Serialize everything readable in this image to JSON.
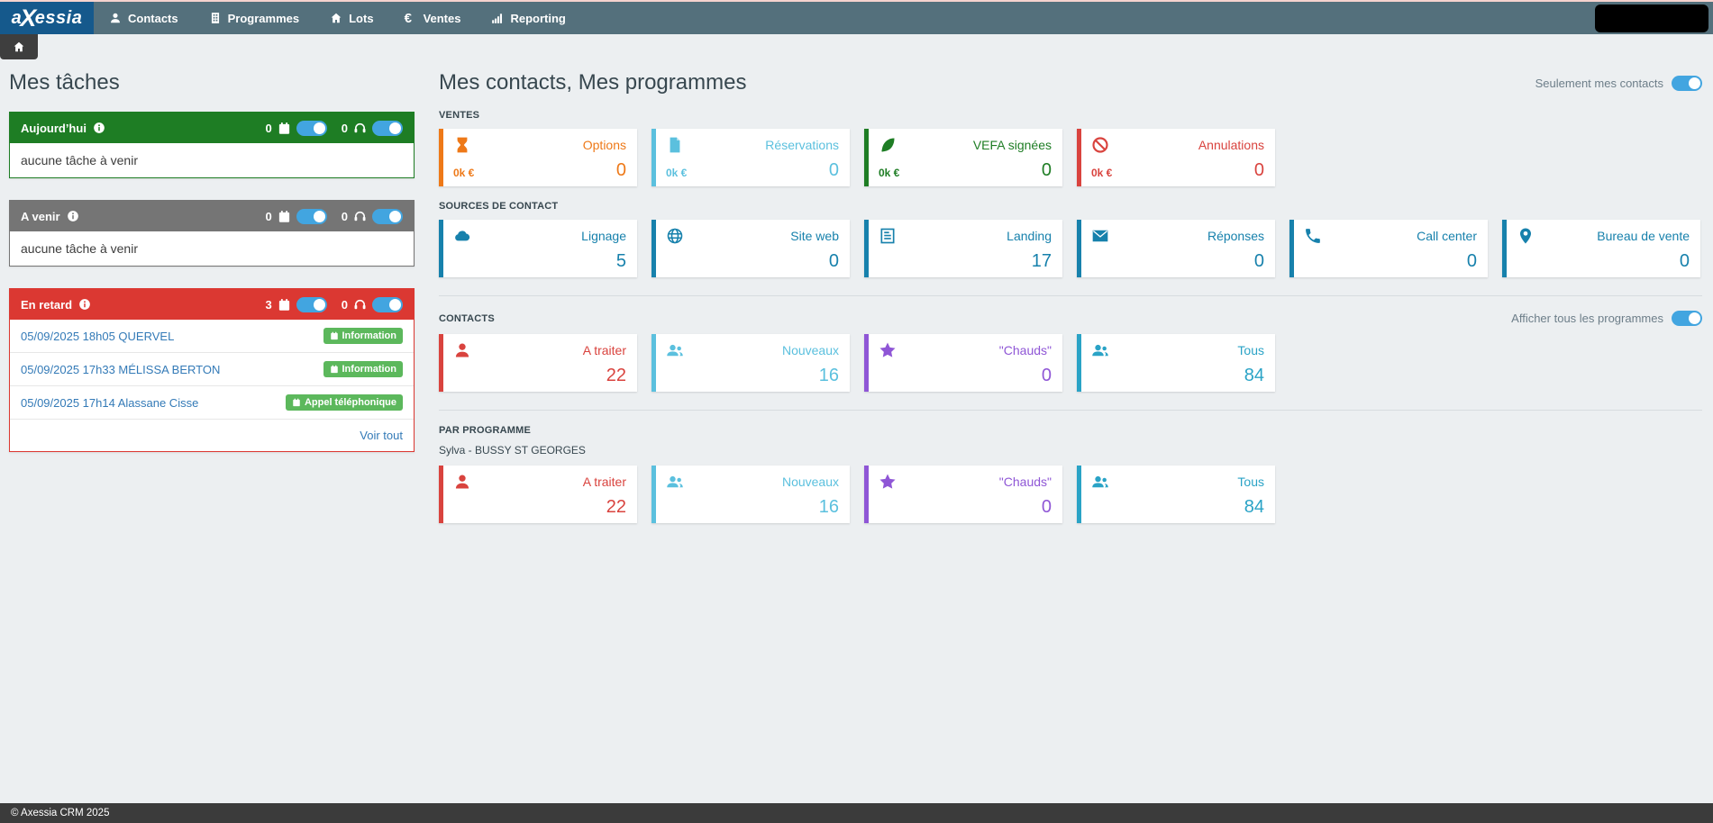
{
  "navbar": {
    "logo_text": "axessia",
    "items": [
      {
        "label": "Contacts",
        "icon": "user"
      },
      {
        "label": "Programmes",
        "icon": "building"
      },
      {
        "label": "Lots",
        "icon": "home"
      },
      {
        "label": "Ventes",
        "icon": "euro"
      },
      {
        "label": "Reporting",
        "icon": "chart"
      }
    ]
  },
  "breadcrumb": {
    "icon": "home"
  },
  "tasks": {
    "title": "Mes tâches",
    "icons": {
      "calendar": "calendar",
      "headset": "headset",
      "info": "info"
    },
    "badge_icon": "calendar",
    "groups": [
      {
        "label": "Aujourd’hui",
        "color": "#1e7d24",
        "calendar_count": "0",
        "call_count": "0",
        "empty_text": "aucune tâche à venir"
      },
      {
        "label": "A venir",
        "color": "#757575",
        "calendar_count": "0",
        "call_count": "0",
        "empty_text": "aucune tâche à venir"
      },
      {
        "label": "En retard",
        "color": "#db3832",
        "calendar_count": "3",
        "call_count": "0",
        "items": [
          {
            "text": "05/09/2025 18h05 QUERVEL",
            "badge": "Information"
          },
          {
            "text": "05/09/2025 17h33 MÉLISSA BERTON",
            "badge": "Information"
          },
          {
            "text": "05/09/2025 17h14 Alassane Cisse",
            "badge": "Appel téléphonique"
          }
        ],
        "view_all_label": "Voir tout"
      }
    ]
  },
  "main": {
    "title": "Mes contacts, Mes programmes",
    "my_contacts_toggle_label": "Seulement mes contacts",
    "all_programs_toggle_label": "Afficher tous les programmes",
    "ventes": {
      "label": "VENTES",
      "cards": [
        {
          "icon": "hourglass",
          "label": "Options",
          "money": "0k €",
          "value": "0",
          "color": "#ee7918"
        },
        {
          "icon": "contract",
          "label": "Réservations",
          "money": "0k €",
          "value": "0",
          "color": "#5bc0de"
        },
        {
          "icon": "feather",
          "label": "VEFA signées",
          "money": "0k €",
          "value": "0",
          "color": "#1e7d24"
        },
        {
          "icon": "ban",
          "label": "Annulations",
          "money": "0k €",
          "value": "0",
          "color": "#d9433e"
        }
      ]
    },
    "sources": {
      "label": "SOURCES DE CONTACT",
      "cards": [
        {
          "icon": "cloud",
          "label": "Lignage",
          "value": "5",
          "color": "#1781ac"
        },
        {
          "icon": "globe",
          "label": "Site web",
          "value": "0",
          "color": "#1781ac"
        },
        {
          "icon": "form",
          "label": "Landing",
          "value": "17",
          "color": "#1781ac"
        },
        {
          "icon": "envelope",
          "label": "Réponses",
          "value": "0",
          "color": "#1781ac"
        },
        {
          "icon": "phone",
          "label": "Call center",
          "value": "0",
          "color": "#1781ac"
        },
        {
          "icon": "marker",
          "label": "Bureau de vente",
          "value": "0",
          "color": "#1781ac"
        }
      ]
    },
    "contacts": {
      "label": "CONTACTS",
      "cards": [
        {
          "icon": "user",
          "label": "A traiter",
          "value": "22",
          "color": "#d9433e"
        },
        {
          "icon": "users",
          "label": "Nouveaux",
          "value": "16",
          "color": "#5bc0de"
        },
        {
          "icon": "star",
          "label": "\"Chauds\"",
          "value": "0",
          "color": "#8f56d6"
        },
        {
          "icon": "users",
          "label": "Tous",
          "value": "84",
          "color": "#2aa3c6"
        }
      ]
    },
    "par_programme": {
      "label": "PAR PROGRAMME",
      "program_name": "Sylva - BUSSY ST GEORGES",
      "cards": [
        {
          "icon": "user",
          "label": "A traiter",
          "value": "22",
          "color": "#d9433e"
        },
        {
          "icon": "users",
          "label": "Nouveaux",
          "value": "16",
          "color": "#5bc0de"
        },
        {
          "icon": "star",
          "label": "\"Chauds\"",
          "value": "0",
          "color": "#8f56d6"
        },
        {
          "icon": "users",
          "label": "Tous",
          "value": "84",
          "color": "#2aa3c6"
        }
      ]
    }
  },
  "footer": {
    "text": "© Axessia CRM 2025"
  }
}
